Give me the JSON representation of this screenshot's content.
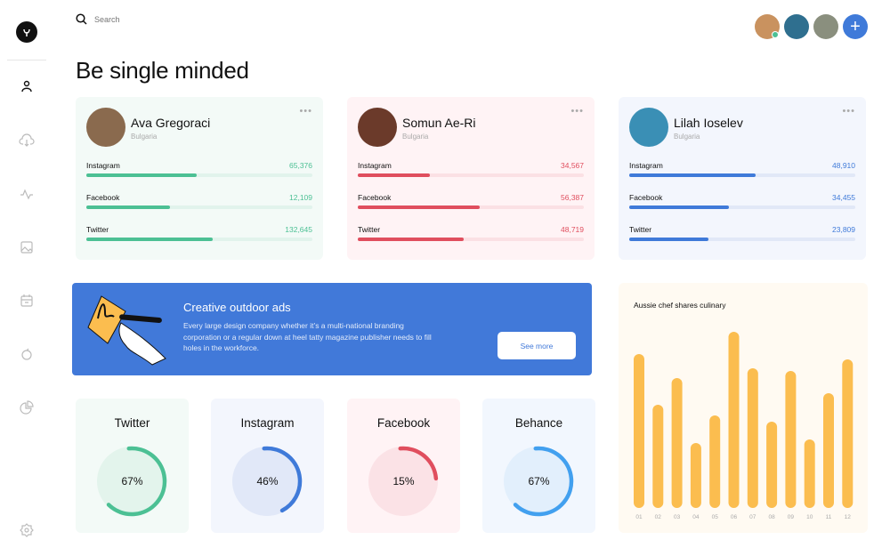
{
  "search": {
    "placeholder": "Search"
  },
  "page_title": "Be single minded",
  "header": {
    "avatars": [
      "#c9925f",
      "#2f6f8f",
      "#8a8f7e"
    ],
    "add_icon": "plus-icon"
  },
  "sidebar": {
    "icons": [
      "user-icon",
      "cloud-download-icon",
      "activity-icon",
      "image-icon",
      "calendar-icon",
      "timer-icon",
      "pie-chart-icon",
      "settings-icon"
    ]
  },
  "profiles": [
    {
      "name": "Ava Gregoraci",
      "country": "Bulgaria",
      "bg": "#f3faf7",
      "color": "#4cc094",
      "track": "#e1f3ec",
      "avatar": "#8a6a4e",
      "stats": [
        {
          "label": "Instagram",
          "value": "65,376",
          "fill": 0.49
        },
        {
          "label": "Facebook",
          "value": "12,109",
          "fill": 0.37
        },
        {
          "label": "Twitter",
          "value": "132,645",
          "fill": 0.56
        }
      ]
    },
    {
      "name": "Somun Ae-Ri",
      "country": "Bulgaria",
      "bg": "#fff3f5",
      "color": "#e04e5e",
      "track": "#fbe0e4",
      "avatar": "#6b3a2a",
      "stats": [
        {
          "label": "Instagram",
          "value": "34,567",
          "fill": 0.32
        },
        {
          "label": "Facebook",
          "value": "56,387",
          "fill": 0.54
        },
        {
          "label": "Twitter",
          "value": "48,719",
          "fill": 0.47
        }
      ]
    },
    {
      "name": "Lilah Ioselev",
      "country": "Bulgaria",
      "bg": "#f3f6fd",
      "color": "#3f7ad9",
      "track": "#e1e8f7",
      "avatar": "#3a8fb5",
      "stats": [
        {
          "label": "Instagram",
          "value": "48,910",
          "fill": 0.56
        },
        {
          "label": "Facebook",
          "value": "34,455",
          "fill": 0.44
        },
        {
          "label": "Twitter",
          "value": "23,809",
          "fill": 0.35
        }
      ]
    }
  ],
  "banner": {
    "title": "Creative outdoor ads",
    "text": "Every large design company whether it’s a multi-national branding corporation or a regular down at heel tatty magazine publisher needs to fill holes in the workforce.",
    "button": "See more"
  },
  "donuts": [
    {
      "title": "Twitter",
      "percent": 67,
      "label": "67%",
      "bg": "#f3faf7",
      "inner": "#e3f4ec",
      "color": "#4cc094"
    },
    {
      "title": "Instagram",
      "percent": 46,
      "label": "46%",
      "bg": "#f3f6fd",
      "inner": "#e1e8f8",
      "color": "#3f7ad9"
    },
    {
      "title": "Facebook",
      "percent": 15,
      "label": "15%",
      "bg": "#fff3f5",
      "inner": "#fbe2e6",
      "color": "#e04e5e"
    },
    {
      "title": "Behance",
      "percent": 67,
      "label": "67%",
      "bg": "#f2f7fe",
      "inner": "#e2effc",
      "color": "#42a0ef"
    }
  ],
  "chart_data": {
    "type": "bar",
    "title": "Aussie chef shares culinary",
    "categories": [
      "01",
      "02",
      "03",
      "04",
      "05",
      "06",
      "07",
      "08",
      "09",
      "10",
      "11",
      "12"
    ],
    "values": [
      173,
      116,
      146,
      73,
      104,
      198,
      157,
      97,
      154,
      77,
      129,
      167
    ],
    "color": "#fbbd4f",
    "grid": false
  }
}
